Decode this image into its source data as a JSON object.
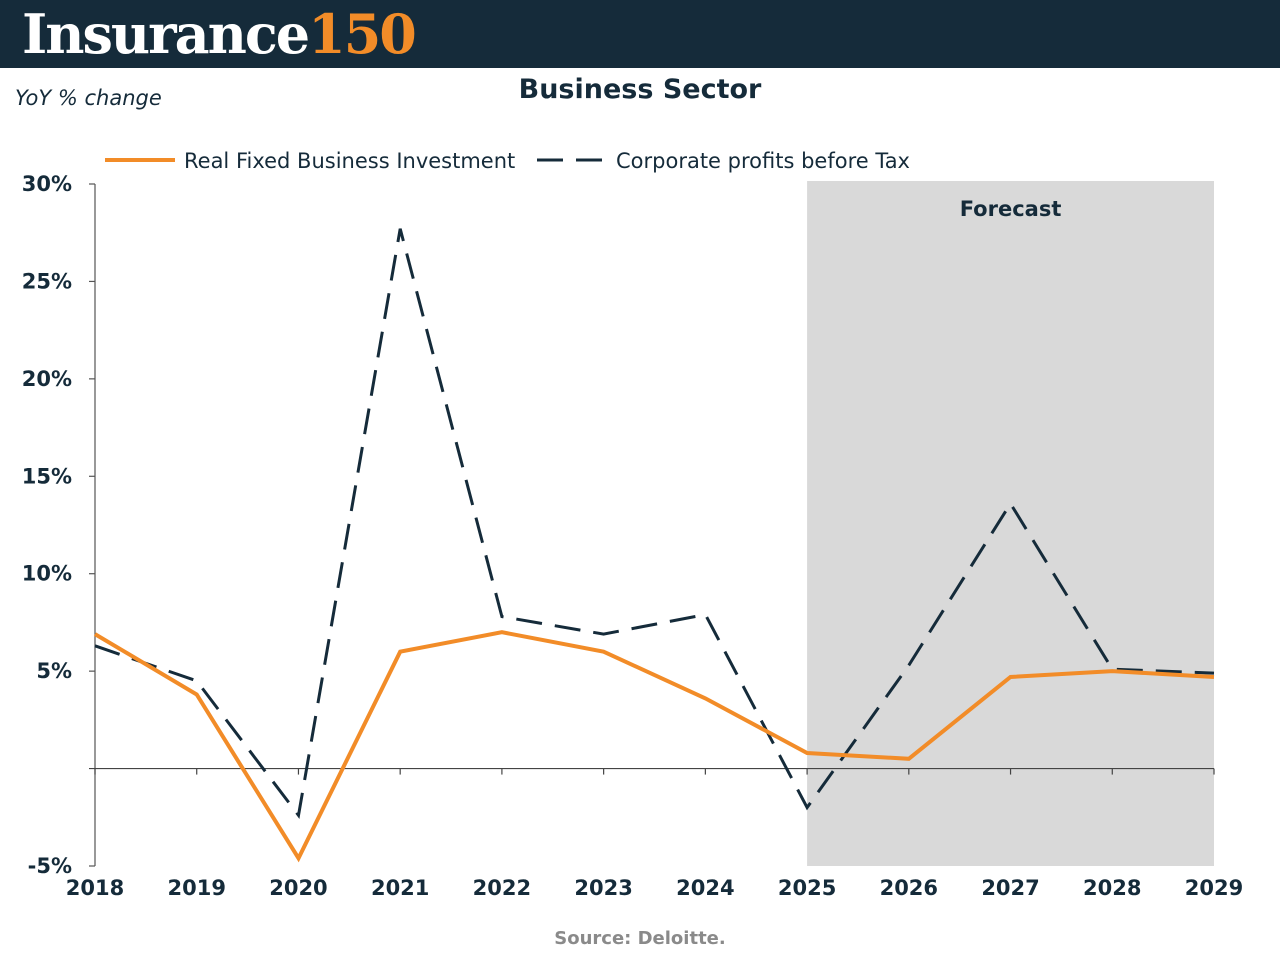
{
  "header": {
    "logo_word": "Insurance",
    "logo_number": "150",
    "bar_color": "#152b3a",
    "accent_color": "#f28c28"
  },
  "footer": {
    "source": "Source: Deloitte."
  },
  "chart_data": {
    "type": "line",
    "title": "Business Sector",
    "ylabel": "YoY % change",
    "xlabel": "",
    "x": [
      "2018",
      "2019",
      "2020",
      "2021",
      "2022",
      "2023",
      "2024",
      "2025",
      "2026",
      "2027",
      "2028",
      "2029"
    ],
    "ylim": [
      -5,
      30
    ],
    "yticks": [
      -5,
      5,
      10,
      15,
      20,
      25,
      30
    ],
    "ytick_labels": [
      "-5%",
      "5%",
      "10%",
      "15%",
      "20%",
      "25%",
      "30%"
    ],
    "grid": false,
    "legend_position": "top",
    "forecast_region": {
      "label": "Forecast",
      "from": "2025",
      "to": "2029",
      "color": "#d9d9d9"
    },
    "series": [
      {
        "name": "Real Fixed Business Investment",
        "style": "solid",
        "color": "#f28c28",
        "values": [
          6.9,
          3.8,
          -4.6,
          6.0,
          7.0,
          6.0,
          3.6,
          0.8,
          0.5,
          4.7,
          5.0,
          4.7
        ]
      },
      {
        "name": "Corporate profits before Tax",
        "style": "dashed",
        "color": "#152b3a",
        "values": [
          6.3,
          4.5,
          -2.4,
          27.7,
          7.8,
          6.9,
          7.9,
          -2.0,
          5.3,
          13.6,
          5.1,
          4.9
        ]
      }
    ]
  }
}
